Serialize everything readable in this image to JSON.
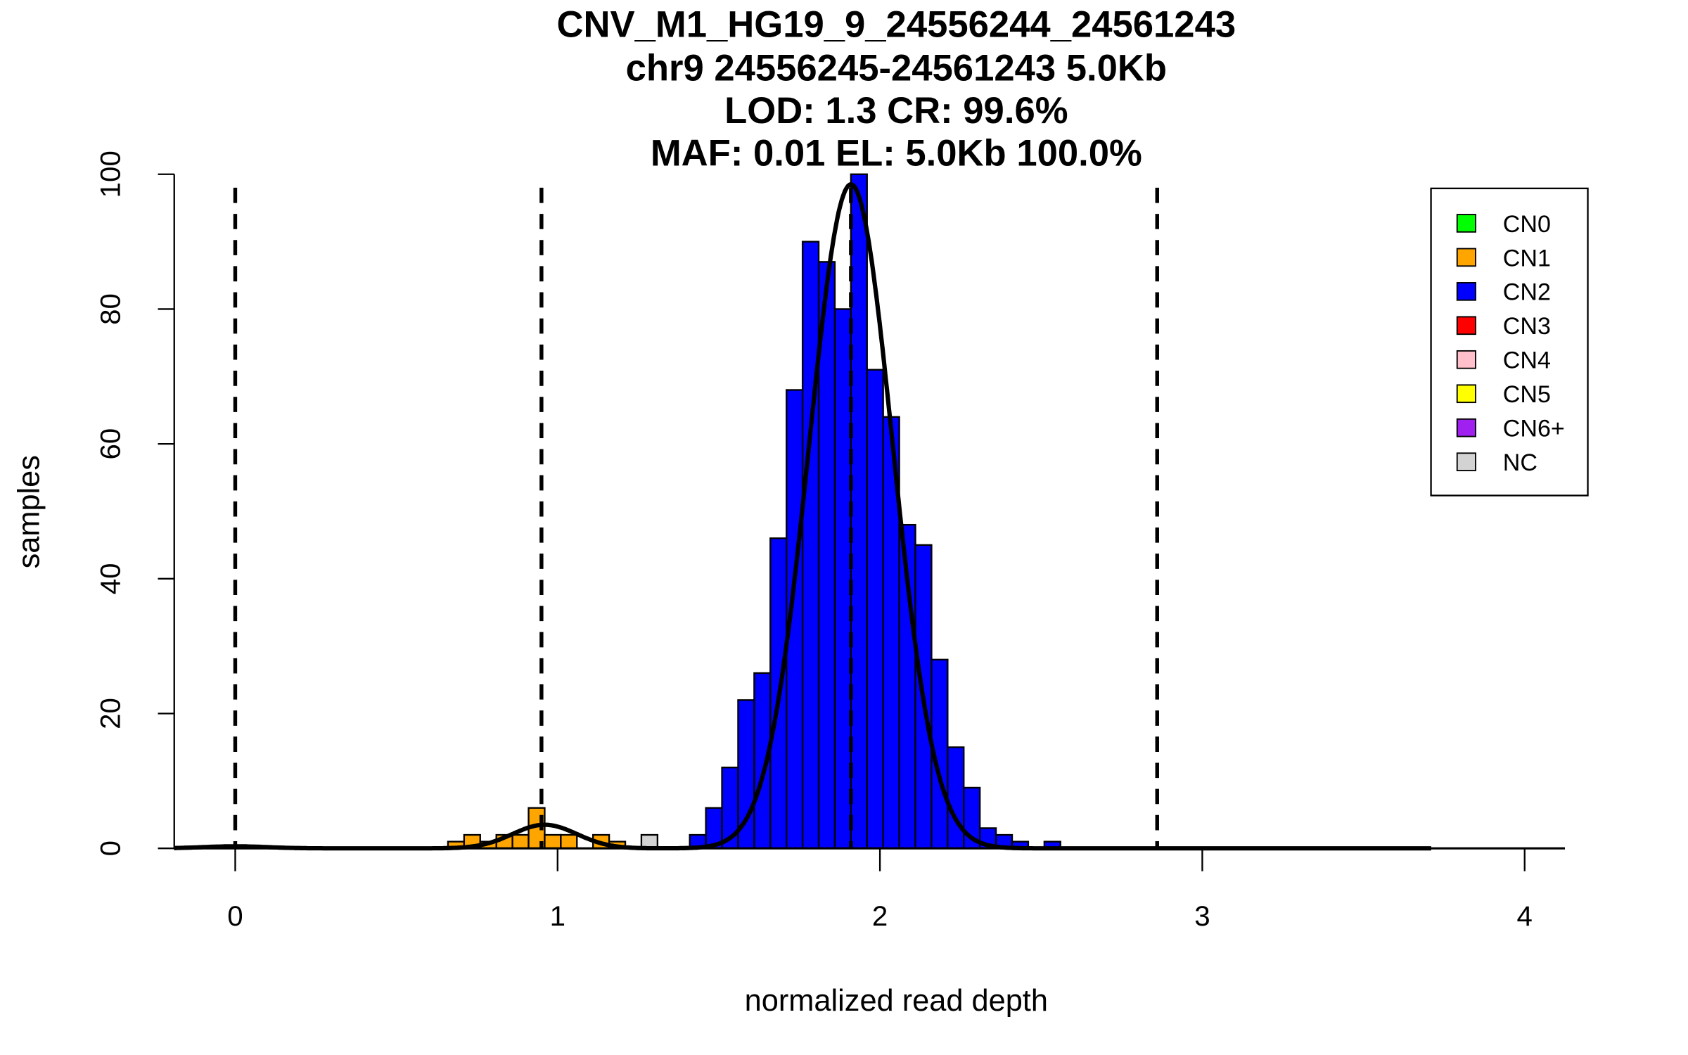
{
  "chart_data": {
    "type": "bar",
    "title_lines": [
      "CNV_M1_HG19_9_24556244_24561243",
      "chr9 24556245-24561243 5.0Kb",
      "LOD: 1.3 CR: 99.6%",
      "MAF: 0.01 EL: 5.0Kb 100.0%"
    ],
    "xlabel": "normalized read depth",
    "ylabel": "samples",
    "xlim": [
      -0.19,
      4.13
    ],
    "ylim": [
      0,
      100
    ],
    "xticks": [
      "0",
      "1",
      "2",
      "3",
      "4"
    ],
    "yticks": [
      "0",
      "20",
      "40",
      "60",
      "80",
      "100"
    ],
    "bin_width": 0.05,
    "bins": [
      {
        "x": 0.66,
        "count": 1,
        "class": "CN1"
      },
      {
        "x": 0.71,
        "count": 2,
        "class": "CN1"
      },
      {
        "x": 0.76,
        "count": 1,
        "class": "CN1"
      },
      {
        "x": 0.81,
        "count": 2,
        "class": "CN1"
      },
      {
        "x": 0.86,
        "count": 2,
        "class": "CN1"
      },
      {
        "x": 0.91,
        "count": 6,
        "class": "CN1"
      },
      {
        "x": 0.96,
        "count": 2,
        "class": "CN1"
      },
      {
        "x": 1.01,
        "count": 2,
        "class": "CN1"
      },
      {
        "x": 1.11,
        "count": 2,
        "class": "CN1"
      },
      {
        "x": 1.16,
        "count": 1,
        "class": "CN1"
      },
      {
        "x": 1.26,
        "count": 2,
        "class": "NC"
      },
      {
        "x": 1.41,
        "count": 2,
        "class": "CN2"
      },
      {
        "x": 1.46,
        "count": 6,
        "class": "CN2"
      },
      {
        "x": 1.51,
        "count": 12,
        "class": "CN2"
      },
      {
        "x": 1.56,
        "count": 22,
        "class": "CN2"
      },
      {
        "x": 1.61,
        "count": 26,
        "class": "CN2"
      },
      {
        "x": 1.66,
        "count": 46,
        "class": "CN2"
      },
      {
        "x": 1.71,
        "count": 68,
        "class": "CN2"
      },
      {
        "x": 1.76,
        "count": 90,
        "class": "CN2"
      },
      {
        "x": 1.81,
        "count": 87,
        "class": "CN2"
      },
      {
        "x": 1.86,
        "count": 80,
        "class": "CN2"
      },
      {
        "x": 1.91,
        "count": 100,
        "class": "CN2"
      },
      {
        "x": 1.96,
        "count": 71,
        "class": "CN2"
      },
      {
        "x": 2.01,
        "count": 64,
        "class": "CN2"
      },
      {
        "x": 2.06,
        "count": 48,
        "class": "CN2"
      },
      {
        "x": 2.11,
        "count": 45,
        "class": "CN2"
      },
      {
        "x": 2.16,
        "count": 28,
        "class": "CN2"
      },
      {
        "x": 2.21,
        "count": 15,
        "class": "CN2"
      },
      {
        "x": 2.26,
        "count": 9,
        "class": "CN2"
      },
      {
        "x": 2.31,
        "count": 3,
        "class": "CN2"
      },
      {
        "x": 2.36,
        "count": 2,
        "class": "CN2"
      },
      {
        "x": 2.41,
        "count": 1,
        "class": "CN2"
      },
      {
        "x": 2.51,
        "count": 1,
        "class": "CN2"
      }
    ],
    "fits": [
      {
        "mean": 0.0,
        "peak": 0.3,
        "sd": 0.1
      },
      {
        "mean": 0.96,
        "peak": 3.5,
        "sd": 0.1
      },
      {
        "mean": 1.91,
        "peak": 98.5,
        "sd": 0.13
      }
    ],
    "dashed_lines_x": [
      0.0,
      0.95,
      1.91,
      2.86
    ],
    "legend": {
      "placement": "top-right",
      "entries": [
        {
          "label": "CN0",
          "color": "#00ff00"
        },
        {
          "label": "CN1",
          "color": "#ffa500"
        },
        {
          "label": "CN2",
          "color": "#0000ff"
        },
        {
          "label": "CN3",
          "color": "#ff0000"
        },
        {
          "label": "CN4",
          "color": "#ffc0cb"
        },
        {
          "label": "CN5",
          "color": "#ffff00"
        },
        {
          "label": "CN6+",
          "color": "#a020f0"
        },
        {
          "label": "NC",
          "color": "#d3d3d3"
        }
      ]
    }
  }
}
